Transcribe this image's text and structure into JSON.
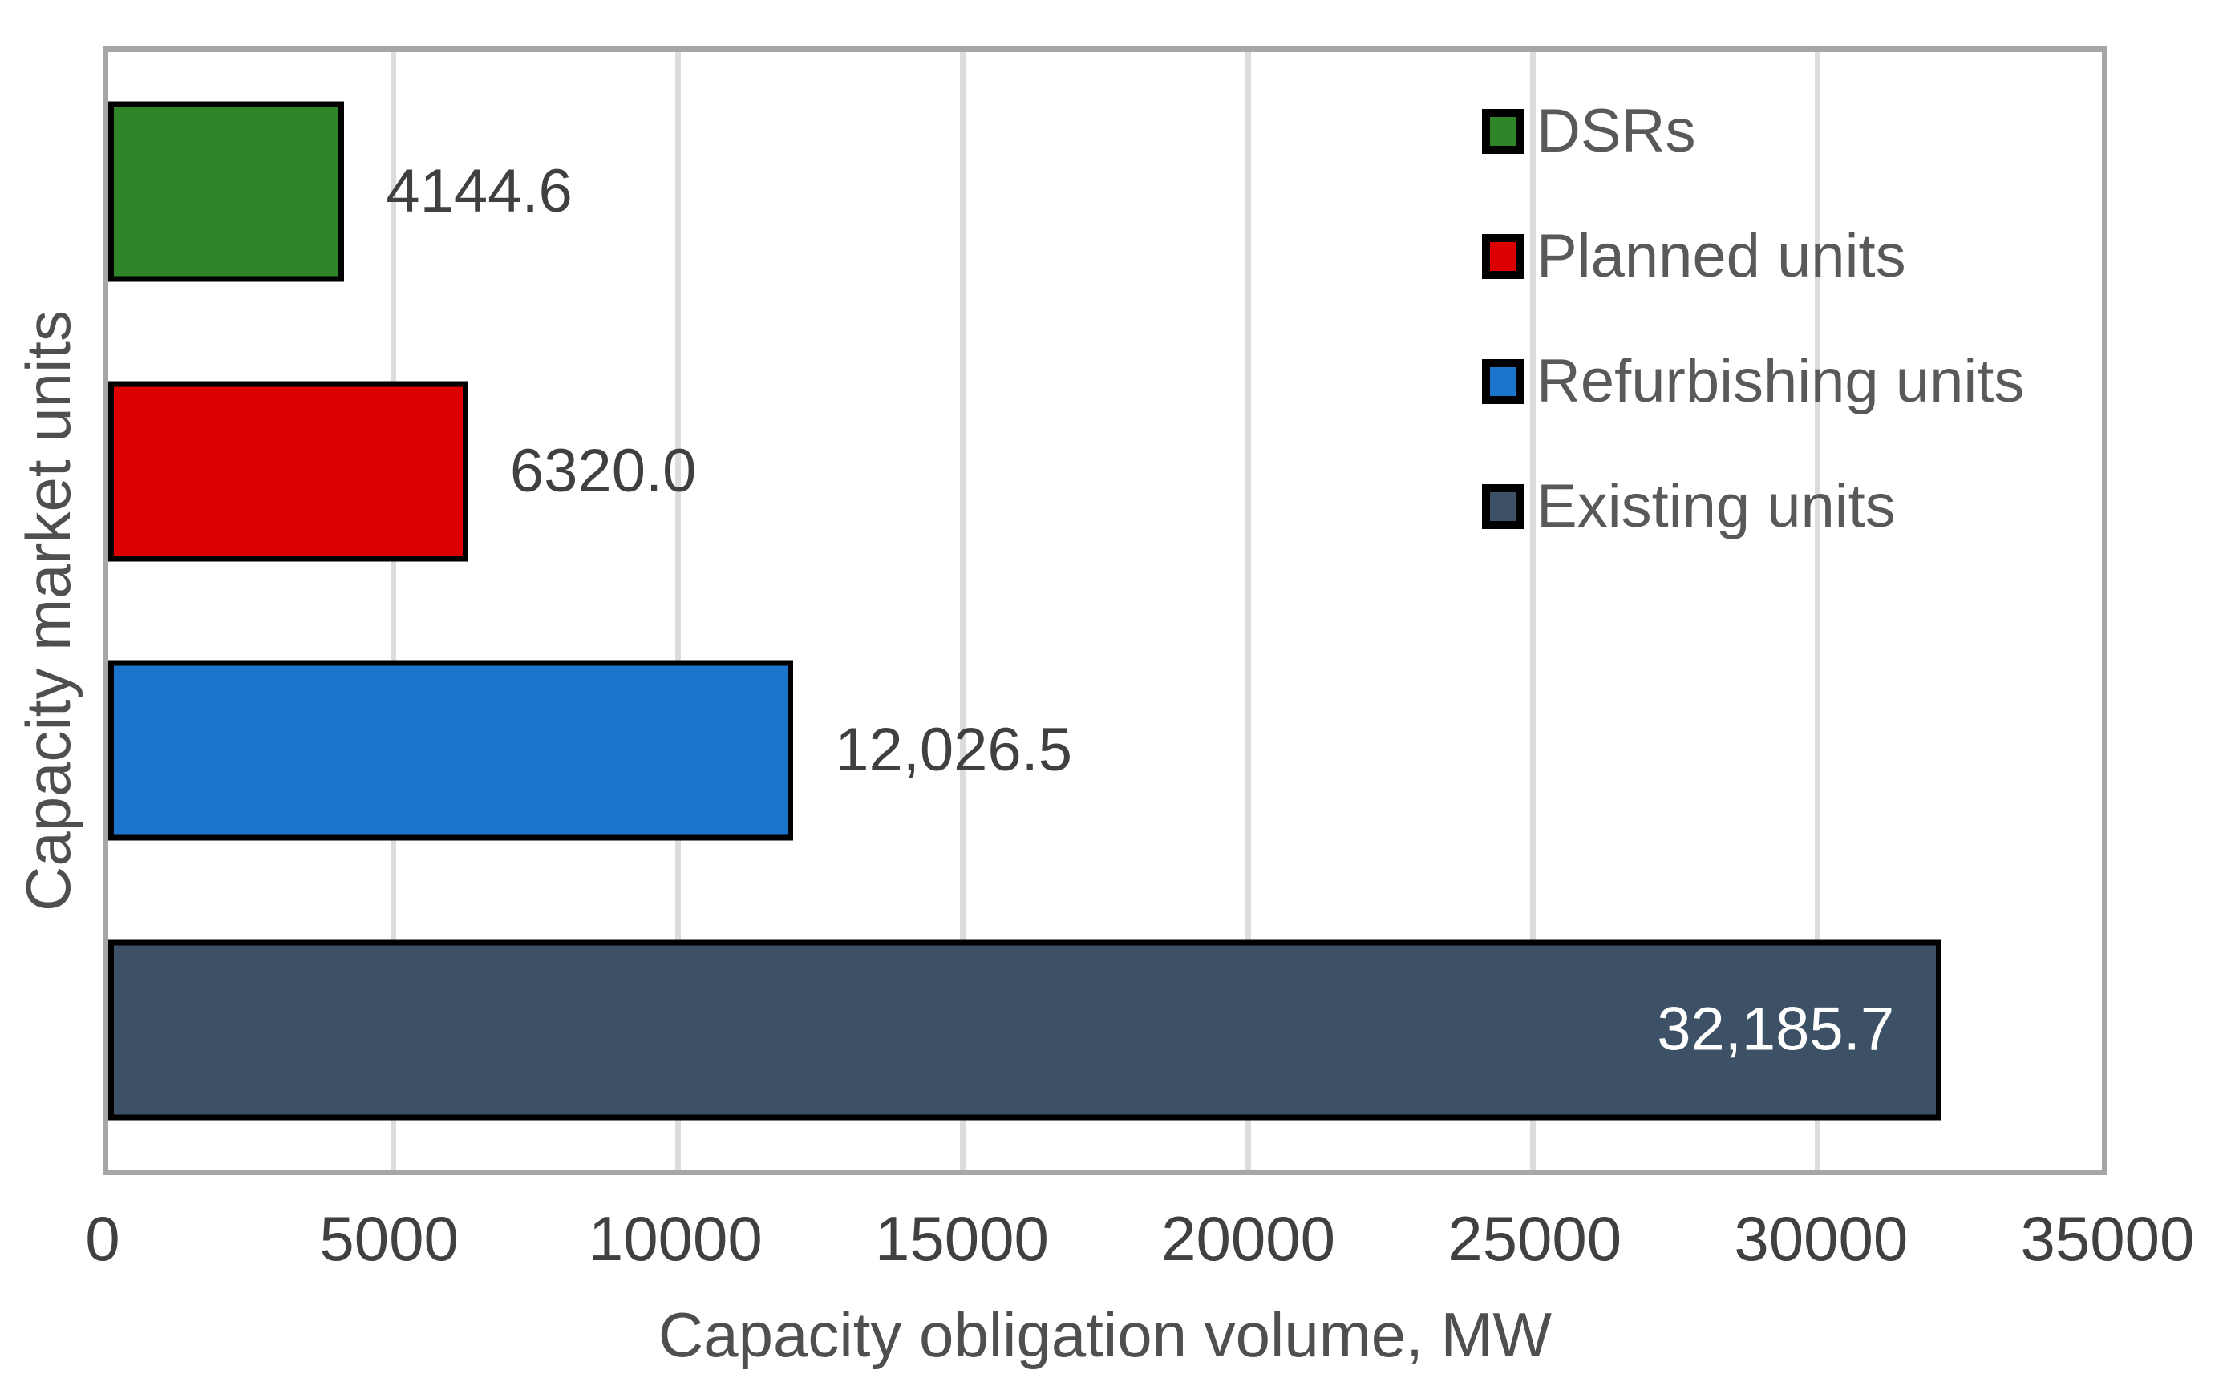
{
  "chart_data": {
    "type": "bar",
    "orientation": "horizontal",
    "xlabel": "Capacity obligation volume, MW",
    "ylabel": "Capacity market units",
    "xlim": [
      0,
      35000
    ],
    "x_ticks": [
      0,
      5000,
      10000,
      15000,
      20000,
      25000,
      30000,
      35000
    ],
    "grid": "vertical",
    "legend_position": "top-right-inside",
    "bars": [
      {
        "category": "DSRs",
        "value": 4144.6,
        "label": "4144.6",
        "color": "#2F8528",
        "label_placement": "outside"
      },
      {
        "category": "Planned units",
        "value": 6320.0,
        "label": "6320.0",
        "color": "#DD0000",
        "label_placement": "outside"
      },
      {
        "category": "Refurbishing units",
        "value": 12026.5,
        "label": "12,026.5",
        "color": "#1B75CC",
        "label_placement": "outside"
      },
      {
        "category": "Existing units",
        "value": 32185.7,
        "label": "32,185.7",
        "color": "#3C5166",
        "label_placement": "inside"
      }
    ],
    "legend": [
      {
        "label": "DSRs",
        "color": "#2F8528"
      },
      {
        "label": "Planned units",
        "color": "#DD0000"
      },
      {
        "label": "Refurbishing units",
        "color": "#1B75CC"
      },
      {
        "label": "Existing units",
        "color": "#3C5166"
      }
    ]
  },
  "styles": {
    "background": "#FFFFFF",
    "axis_line_color": "#A6A6A6",
    "gridline_color": "#DCDCDC",
    "bar_border_color": "#000000",
    "tick_label_color": "#404040",
    "value_label_color": "#404040",
    "value_label_inside_color": "#FFFFFF",
    "legend_text_color": "#595959",
    "axis_title_color": "#4F4F4F"
  }
}
